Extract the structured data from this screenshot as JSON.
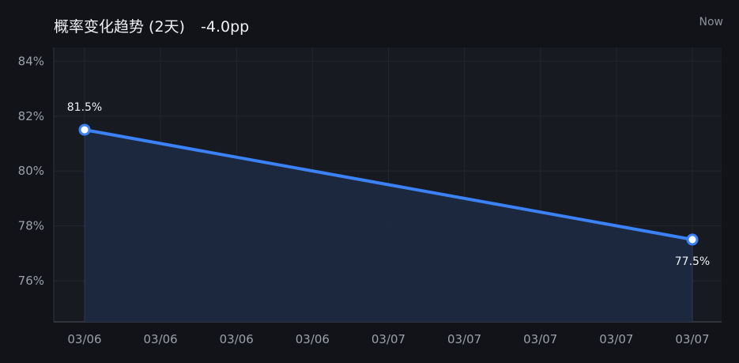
{
  "header": {
    "title": "概率变化趋势 (2天)",
    "delta": "-4.0pp",
    "now_label": "Now"
  },
  "colors": {
    "background": "#111318",
    "plot_background": "#181a22",
    "line": "#3b82f6",
    "area": "#1c2940",
    "grid": "#23262f"
  },
  "chart_data": {
    "type": "area",
    "title": "概率变化趋势 (2天)",
    "xlabel": "",
    "ylabel": "",
    "x_tick_labels": [
      "03/06",
      "03/06",
      "03/06",
      "03/06",
      "03/07",
      "03/07",
      "03/07",
      "03/07",
      "03/07"
    ],
    "y_ticks": [
      76,
      78,
      80,
      82,
      84
    ],
    "y_tick_labels": [
      "76%",
      "78%",
      "80%",
      "82%",
      "84%"
    ],
    "ylim": [
      74.5,
      84.5
    ],
    "grid": true,
    "legend": "none",
    "series": [
      {
        "values": [
          81.5,
          77.5
        ],
        "labels": [
          "81.5%",
          "77.5%"
        ]
      }
    ]
  }
}
